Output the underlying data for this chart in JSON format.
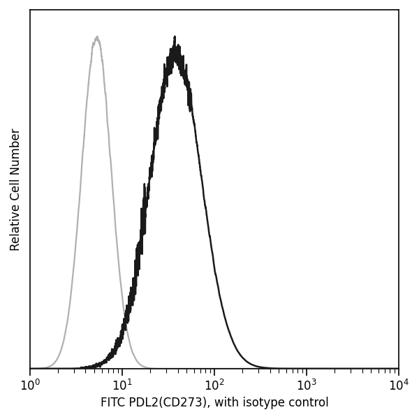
{
  "title": "",
  "xlabel": "FITC PDL2(CD273), with isotype control",
  "ylabel": "Relative Cell Number",
  "xlim_log": [
    0,
    4
  ],
  "ylim": [
    0,
    1.08
  ],
  "background_color": "#ffffff",
  "isotype_color": "#b0b0b0",
  "antibody_color": "#1a1a1a",
  "isotype_peak_log": 0.72,
  "antibody_peak_log": 1.58,
  "isotype_sigma_log": 0.16,
  "antibody_sigma_log": 0.28,
  "linewidth_iso": 1.6,
  "linewidth_ab": 1.8,
  "figsize": [
    6.0,
    6.0
  ],
  "dpi": 100
}
